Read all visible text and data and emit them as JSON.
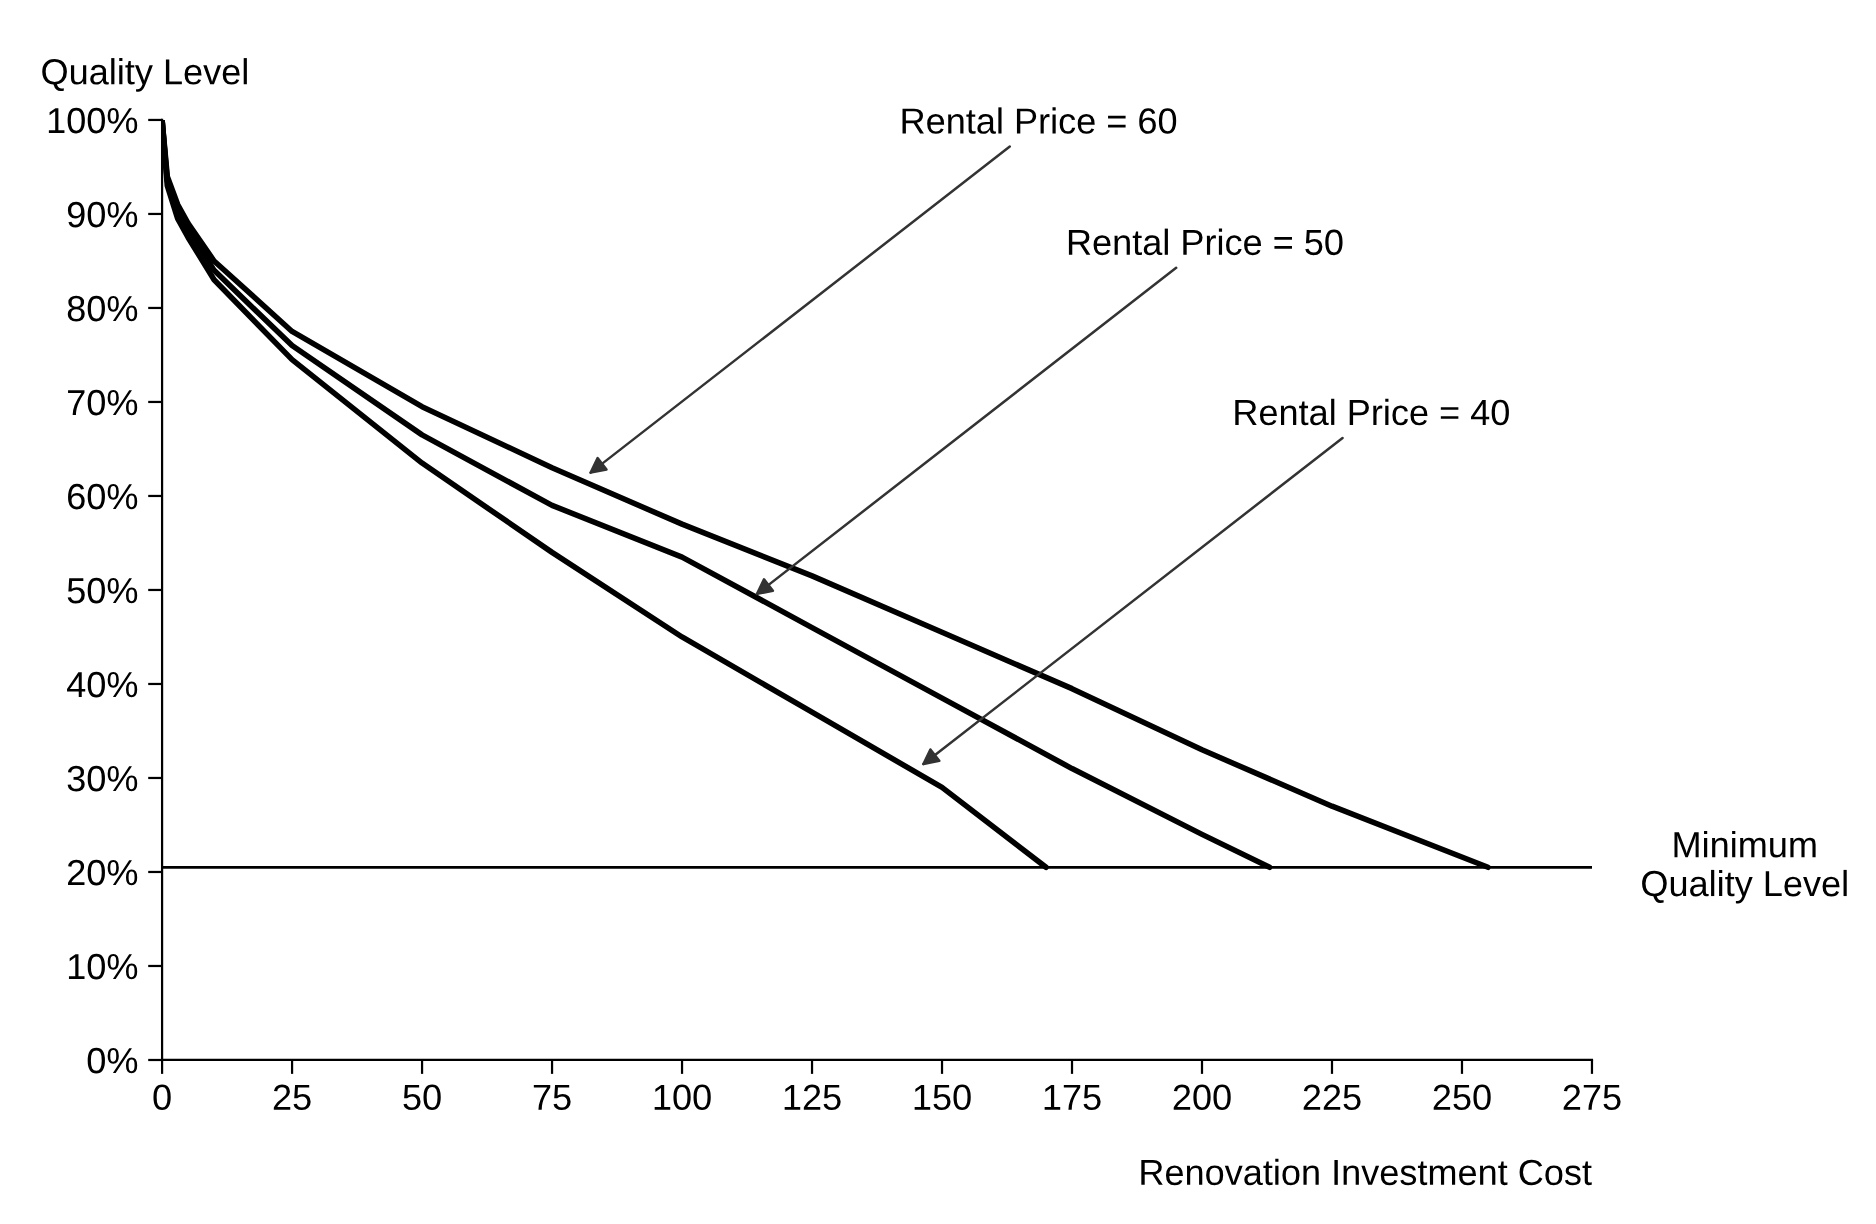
{
  "chart_data": {
    "type": "line",
    "ylabel": "Quality Level",
    "xlabel": "Renovation Investment Cost",
    "series": [
      {
        "color": "#000000",
        "x": [
          0,
          1,
          3,
          5,
          10,
          25,
          50,
          75,
          100,
          125,
          150,
          175,
          200,
          225,
          255
        ],
        "values": [
          100,
          94,
          91,
          89,
          85,
          77.5,
          69.5,
          63,
          57,
          51.5,
          45.5,
          39.5,
          33,
          27,
          20.5
        ]
      },
      {
        "color": "#000000",
        "x": [
          0,
          1,
          3,
          5,
          10,
          25,
          50,
          75,
          100,
          125,
          150,
          175,
          200,
          213
        ],
        "values": [
          100,
          93.5,
          90.5,
          88.5,
          84,
          76,
          66.5,
          59,
          53.5,
          46,
          38.5,
          31,
          24,
          20.5
        ]
      },
      {
        "color": "#000000",
        "x": [
          0,
          1,
          3,
          5,
          10,
          25,
          50,
          75,
          100,
          125,
          150,
          170
        ],
        "values": [
          100,
          93,
          89.5,
          87.5,
          83,
          74.5,
          63.5,
          54,
          45,
          37,
          29,
          20.5
        ]
      }
    ],
    "annotations": [
      {
        "text": "Rental Price = 60",
        "x": 82,
        "y": 62.3
      },
      {
        "text": "Rental Price = 50",
        "x": 114,
        "y": 49.4
      },
      {
        "text": "Rental Price = 40",
        "x": 146,
        "y": 31.3
      }
    ],
    "ref_lines": [
      {
        "axis": "y",
        "value": 20.5,
        "label": "Minimum\nQuality Level",
        "color": "#000000"
      }
    ],
    "xlim": [
      0,
      275
    ],
    "xticks": [
      0,
      25,
      50,
      75,
      100,
      125,
      150,
      175,
      200,
      225,
      250,
      275
    ],
    "ylim": [
      0,
      100
    ],
    "yticks": [
      {
        "value": 0,
        "label": "0%"
      },
      {
        "value": 10,
        "label": "10%"
      },
      {
        "value": 20,
        "label": "20%"
      },
      {
        "value": 30,
        "label": "30%"
      },
      {
        "value": 40,
        "label": "40%"
      },
      {
        "value": 50,
        "label": "50%"
      },
      {
        "value": 60,
        "label": "60%"
      },
      {
        "value": 70,
        "label": "70%"
      },
      {
        "value": 80,
        "label": "80%"
      },
      {
        "value": 90,
        "label": "90%"
      },
      {
        "value": 100,
        "label": "100%"
      }
    ],
    "grid": false,
    "legend": false,
    "marker": "none",
    "line_style": "solid"
  }
}
